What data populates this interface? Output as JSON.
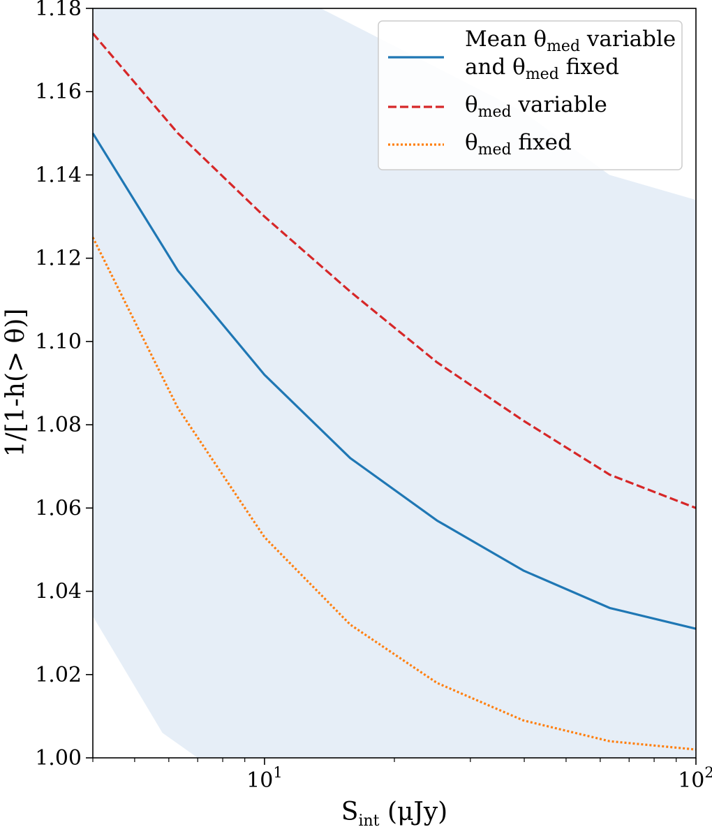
{
  "chart_data": {
    "type": "line",
    "xscale": "log",
    "xlim": [
      4,
      100
    ],
    "ylim": [
      1.0,
      1.18
    ],
    "xlabel": {
      "main": "S",
      "sub": "int",
      "rest": " (μJy)"
    },
    "ylabel": "1/[1-h(> θ)]",
    "x_ticks": [
      {
        "value": 10,
        "base": "10",
        "exp": "1"
      },
      {
        "value": 100,
        "base": "10",
        "exp": "2"
      }
    ],
    "y_ticks": [
      {
        "value": 1.0,
        "label": "1.00"
      },
      {
        "value": 1.02,
        "label": "1.02"
      },
      {
        "value": 1.04,
        "label": "1.04"
      },
      {
        "value": 1.06,
        "label": "1.06"
      },
      {
        "value": 1.08,
        "label": "1.08"
      },
      {
        "value": 1.1,
        "label": "1.10"
      },
      {
        "value": 1.12,
        "label": "1.12"
      },
      {
        "value": 1.14,
        "label": "1.14"
      },
      {
        "value": 1.16,
        "label": "1.16"
      },
      {
        "value": 1.18,
        "label": "1.18"
      }
    ],
    "x": [
      4,
      6.3,
      10,
      15.8,
      25.1,
      39.8,
      63.1,
      100
    ],
    "series": [
      {
        "name": "Mean θmed variable and θmed fixed",
        "style": "solid",
        "color": "#1f77b4",
        "values": [
          1.15,
          1.117,
          1.092,
          1.072,
          1.057,
          1.045,
          1.036,
          1.031
        ]
      },
      {
        "name": "θmed variable",
        "style": "dashed",
        "color": "#d62728",
        "values": [
          1.174,
          1.15,
          1.13,
          1.112,
          1.095,
          1.081,
          1.068,
          1.06
        ]
      },
      {
        "name": "θmed fixed",
        "style": "dotted",
        "color": "#ff7f0e",
        "values": [
          1.125,
          1.084,
          1.053,
          1.032,
          1.018,
          1.009,
          1.004,
          1.002
        ]
      }
    ],
    "band": {
      "color": "#e6eef7",
      "upper_x": [
        4,
        13.5,
        40,
        63,
        100
      ],
      "upper_y": [
        1.18,
        1.18,
        1.155,
        1.14,
        1.134
      ],
      "lower_x": [
        4,
        5.8,
        7,
        100
      ],
      "lower_y": [
        1.034,
        1.006,
        1.0,
        1.0
      ]
    },
    "legend": {
      "position": "top-right",
      "entries": [
        {
          "line1_pre": "Mean θ",
          "line1_sub": "med",
          "line1_post": " variable",
          "line2_pre": "and θ",
          "line2_sub": "med",
          "line2_post": " fixed"
        },
        {
          "line1_pre": "θ",
          "line1_sub": "med",
          "line1_post": " variable"
        },
        {
          "line1_pre": "θ",
          "line1_sub": "med",
          "line1_post": " fixed"
        }
      ]
    }
  }
}
